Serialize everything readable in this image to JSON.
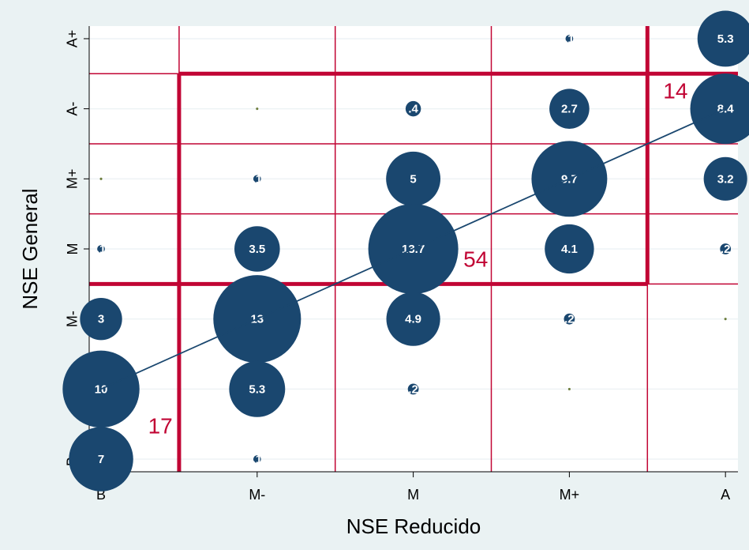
{
  "chart_data": {
    "type": "bubble",
    "x_label": "NSE Reducido",
    "y_label": "NSE General",
    "x_categories": [
      "B",
      "M-",
      "M",
      "M+",
      "A"
    ],
    "y_categories": [
      "B-",
      "B+",
      "M-",
      "M",
      "M+",
      "A-",
      "A+"
    ],
    "xlim": [
      -0.076,
      4.08
    ],
    "ylim": [
      -0.18,
      6.18
    ],
    "color": "#1a476f",
    "line_color": "#c10534",
    "grid": true,
    "points": {
      "x": [
        3,
        4,
        1,
        2,
        3,
        4,
        0,
        1,
        2,
        3,
        4,
        0,
        1,
        2,
        3,
        4,
        0,
        1,
        2,
        3,
        4,
        0,
        1,
        2,
        3,
        0,
        1
      ],
      "y": [
        6,
        6,
        5,
        5,
        5,
        5,
        4,
        4,
        4,
        4,
        4,
        3,
        3,
        3,
        3,
        3,
        2,
        2,
        2,
        2,
        2,
        1,
        1,
        1,
        1,
        0,
        0
      ],
      "values": [
        0.1,
        5.3,
        0.01,
        0.4,
        2.7,
        8.4,
        0.01,
        0.1,
        5,
        9.7,
        3.2,
        0.1,
        3.5,
        13.7,
        4.1,
        0.2,
        3,
        13,
        4.9,
        0.2,
        0.01,
        10,
        5.3,
        0.2,
        0.01,
        7,
        0.1
      ],
      "value_labels": [
        ".1",
        "5.3",
        null,
        ".4",
        "2.7",
        "8.4",
        null,
        ".1",
        "5",
        "9.7",
        "3.2",
        ".1",
        "3.5",
        "13.7",
        "4.1",
        ".2",
        "3",
        "13",
        "4.9",
        ".2",
        null,
        "10",
        "5.3",
        ".2",
        null,
        "7",
        ".1"
      ]
    },
    "fit_line": {
      "x": [
        0,
        4
      ],
      "y": [
        1,
        5
      ]
    },
    "annotations": [
      "17",
      "54",
      "14"
    ]
  }
}
